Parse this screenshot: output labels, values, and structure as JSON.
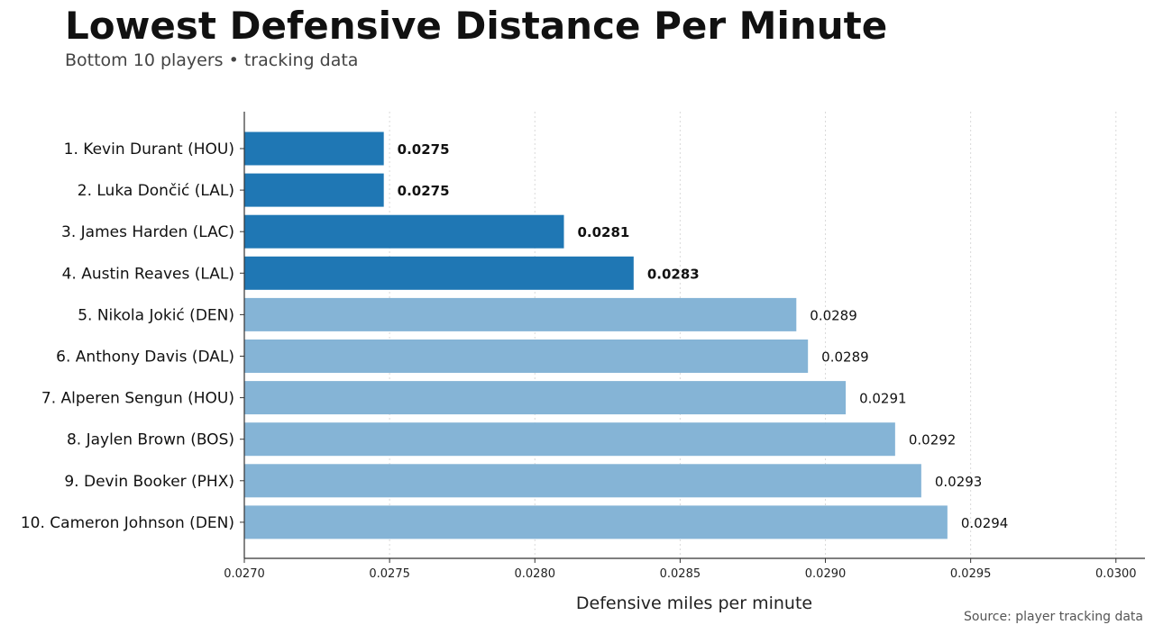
{
  "header": {
    "title": "Lowest Defensive Distance Per Minute",
    "subtitle": "Bottom 10 players • tracking data"
  },
  "footer": {
    "source": "Source: player tracking data"
  },
  "chart_data": {
    "type": "bar",
    "orientation": "horizontal",
    "xlabel": "Defensive miles per minute",
    "xlim": [
      0.027,
      0.0301
    ],
    "xticks": [
      "0.0270",
      "0.0275",
      "0.0280",
      "0.0285",
      "0.0290",
      "0.0295",
      "0.0300"
    ],
    "grid": "vertical, dotted",
    "categories": [
      "1. Kevin Durant (HOU)",
      "2. Luka Dončić (LAL)",
      "3. James Harden (LAC)",
      "4. Austin Reaves (LAL)",
      "5. Nikola Jokić (DEN)",
      "6. Anthony Davis (DAL)",
      "7. Alperen Sengun (HOU)",
      "8. Jaylen Brown (BOS)",
      "9. Devin Booker (PHX)",
      "10. Cameron Johnson (DEN)"
    ],
    "values": [
      0.02748,
      0.02748,
      0.0281,
      0.02834,
      0.0289,
      0.02894,
      0.02907,
      0.02924,
      0.02933,
      0.02942
    ],
    "value_labels": [
      "0.0275",
      "0.0275",
      "0.0281",
      "0.0283",
      "0.0289",
      "0.0289",
      "0.0291",
      "0.0292",
      "0.0293",
      "0.0294"
    ],
    "highlighted": [
      true,
      true,
      true,
      true,
      false,
      false,
      false,
      false,
      false,
      false
    ],
    "colors": {
      "highlight": "#1f77b4",
      "default": "#85b4d6"
    }
  }
}
